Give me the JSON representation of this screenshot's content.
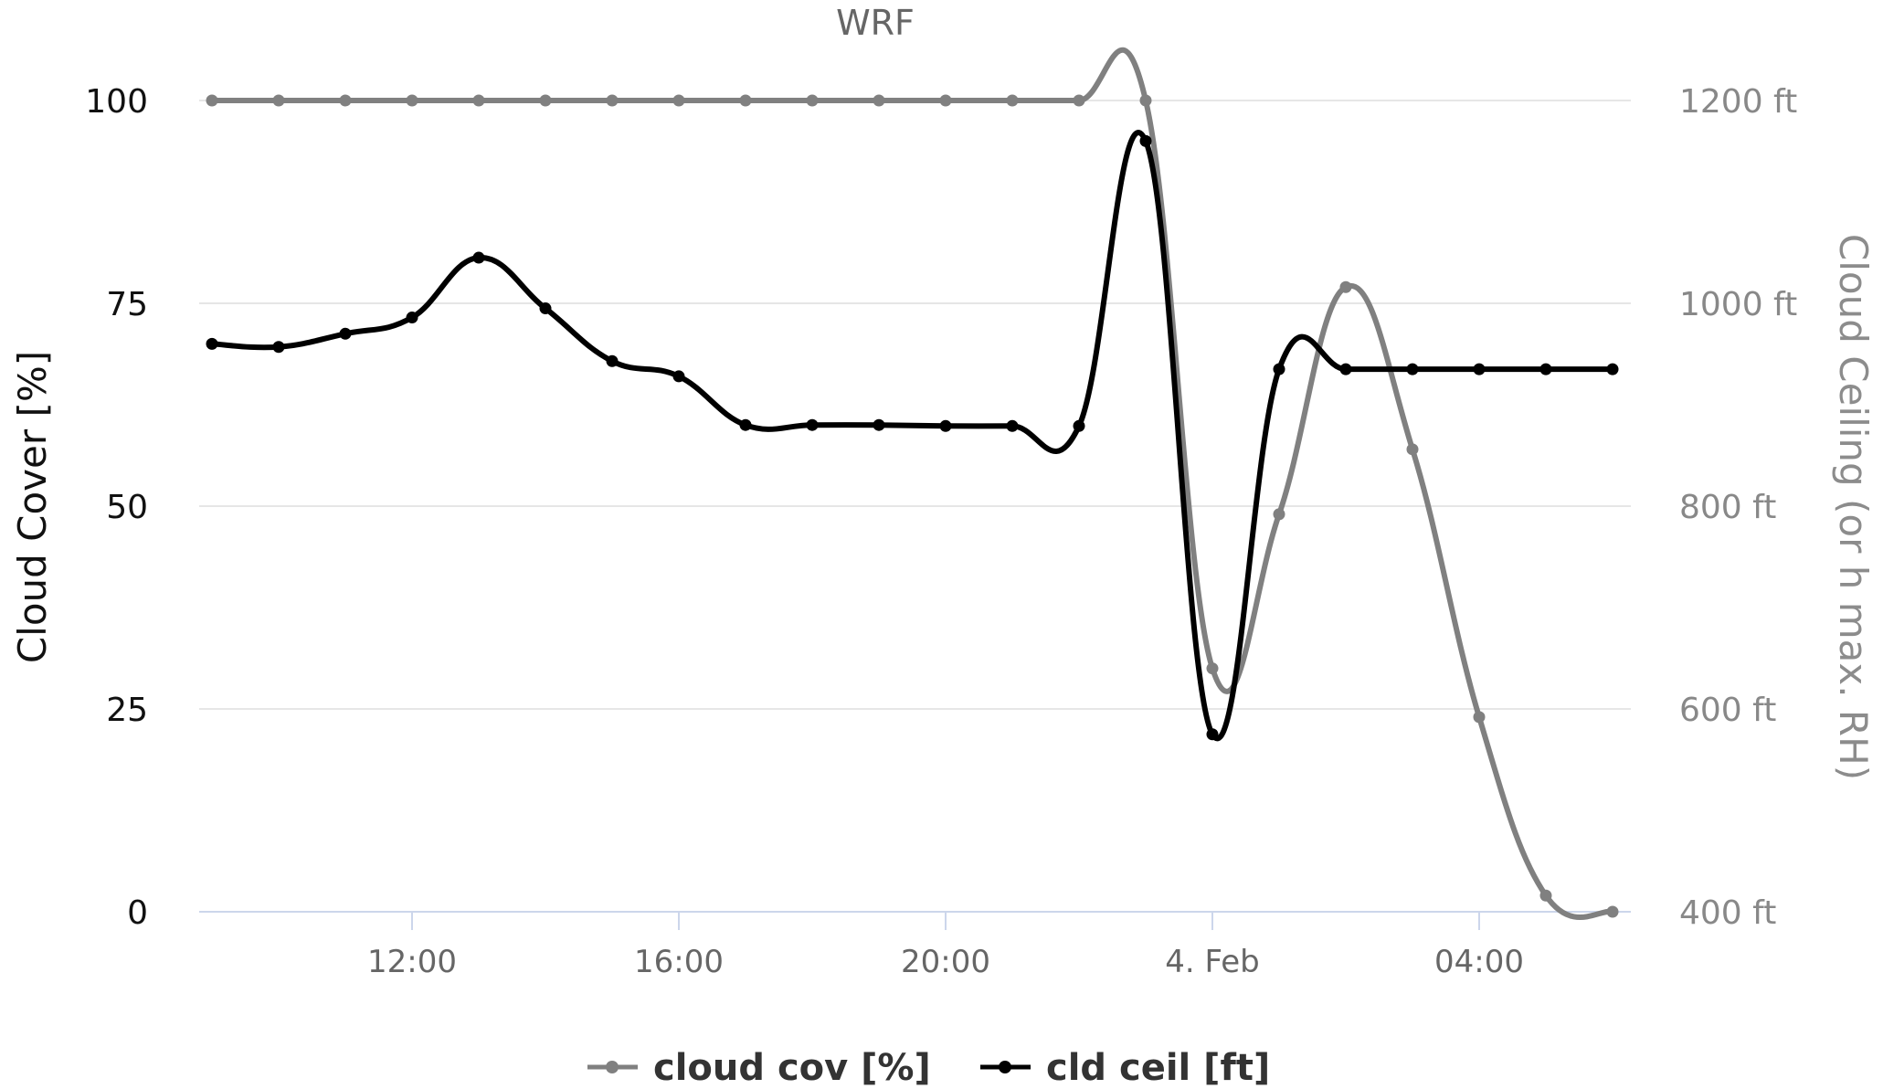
{
  "chart_data": {
    "type": "line",
    "title": "WRF",
    "x": [
      "09:00",
      "10:00",
      "11:00",
      "12:00",
      "13:00",
      "14:00",
      "15:00",
      "16:00",
      "17:00",
      "18:00",
      "19:00",
      "20:00",
      "21:00",
      "22:00",
      "23:00",
      "00:00",
      "01:00",
      "02:00",
      "03:00",
      "04:00",
      "05:00",
      "06:00"
    ],
    "x_tick_labels": [
      "12:00",
      "16:00",
      "20:00",
      "4. Feb",
      "04:00"
    ],
    "y_left": {
      "label": "Cloud Cover [%]",
      "range": [
        0,
        100
      ],
      "ticks": [
        "0",
        "25",
        "50",
        "75",
        "100"
      ]
    },
    "y_right": {
      "label": "Cloud Ceiling (or h max. RH)",
      "range": [
        400,
        1200
      ],
      "unit": "ft",
      "ticks": [
        "400 ft",
        "600 ft",
        "800 ft",
        "1000 ft",
        "1200 ft"
      ]
    },
    "series": [
      {
        "name": "cloud cov [%]",
        "axis": "left",
        "color": "#808080",
        "values": [
          100,
          100,
          100,
          100,
          100,
          100,
          100,
          100,
          100,
          100,
          100,
          100,
          100,
          100,
          100,
          30,
          49,
          77,
          57,
          24,
          2,
          0
        ]
      },
      {
        "name": "cld ceil [ft]",
        "axis": "right",
        "color": "#000000",
        "values": [
          960,
          957,
          970,
          986,
          1045,
          995,
          943,
          928,
          880,
          880,
          880,
          879,
          879,
          879,
          1160,
          575,
          935,
          935,
          935,
          935,
          935,
          935
        ]
      }
    ],
    "grid": true,
    "legend_position": "bottom-center"
  }
}
